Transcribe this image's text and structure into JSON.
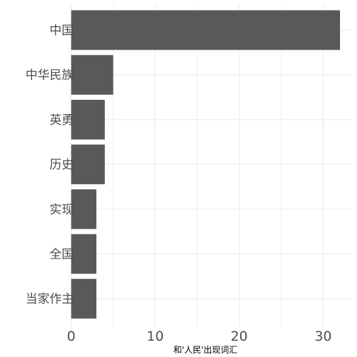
{
  "chart_data": {
    "type": "bar",
    "orientation": "horizontal",
    "categories": [
      "中国",
      "中华民族",
      "英勇",
      "历史",
      "实现",
      "全国",
      "当家作主"
    ],
    "values": [
      32,
      5,
      4,
      4,
      3,
      3,
      3
    ],
    "title": "",
    "xlabel": "和'人民'出现词汇",
    "ylabel": "",
    "xlim": [
      0,
      33.6
    ],
    "x_ticks": [
      0,
      10,
      20,
      30
    ],
    "grid": true,
    "legend": "none",
    "bar_color": "#595959",
    "grid_color": "#ebebeb"
  }
}
